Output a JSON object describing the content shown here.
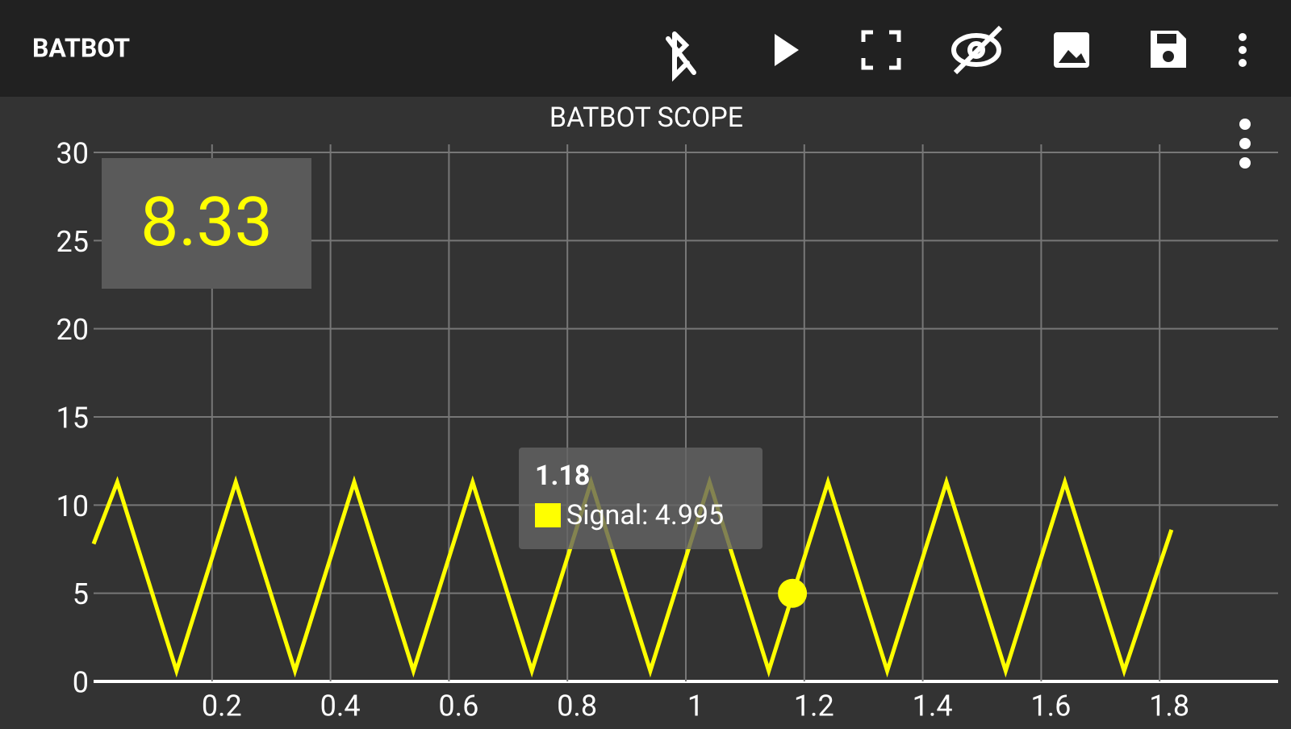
{
  "app_bar": {
    "title": "BATBOT"
  },
  "readout": "8.33",
  "tooltip": {
    "title": "1.18",
    "text": "Signal: 4.995"
  },
  "chart_data": {
    "type": "line",
    "title": "BATBOT SCOPE",
    "x": [
      0,
      0.04,
      0.14,
      0.24,
      0.34,
      0.44,
      0.54,
      0.64,
      0.74,
      0.84,
      0.94,
      1.04,
      1.14,
      1.24,
      1.34,
      1.44,
      1.54,
      1.64,
      1.74,
      1.82
    ],
    "series": [
      {
        "name": "Signal",
        "color": "#ffff00",
        "values": [
          7.8,
          11.3,
          0.6,
          11.3,
          0.6,
          11.3,
          0.6,
          11.3,
          0.6,
          11.3,
          0.6,
          11.3,
          0.6,
          11.3,
          0.6,
          11.3,
          0.6,
          11.3,
          0.6,
          8.6
        ]
      }
    ],
    "highlight": {
      "x": 1.18,
      "y": 4.995
    },
    "xlim": [
      0,
      2
    ],
    "xticks": [
      0.2,
      0.4,
      0.6,
      0.8,
      1,
      1.2,
      1.4,
      1.6,
      1.8
    ],
    "ylim": [
      0,
      30
    ],
    "yticks": [
      0,
      5,
      10,
      15,
      20,
      25,
      30
    ],
    "grid": true
  }
}
